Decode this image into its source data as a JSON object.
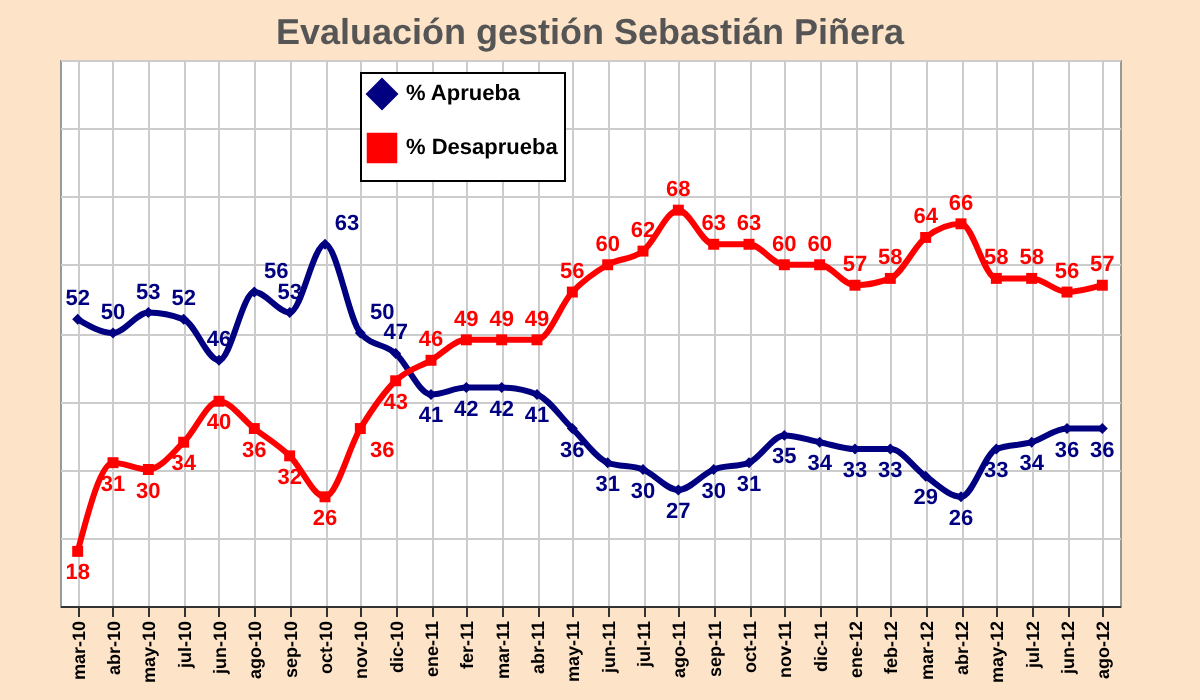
{
  "chart_data": {
    "type": "line",
    "title": "Evaluación gestión Sebastián Piñera",
    "categories": [
      "mar-10",
      "abr-10",
      "may-10",
      "jul-10",
      "jun-10",
      "ago-10",
      "sep-10",
      "oct-10",
      "nov-10",
      "dic-10",
      "ene-11",
      "fer-11",
      "mar-11",
      "abr-11",
      "may-11",
      "jun-11",
      "jul-11",
      "ago-11",
      "sep-11",
      "oct-11",
      "nov-11",
      "dic-11",
      "ene-12",
      "feb-12",
      "mar-12",
      "abr-12",
      "may-12",
      "jul-12",
      "jun-12",
      "ago-12"
    ],
    "series": [
      {
        "name": "% Aprueba",
        "color": "#000080",
        "marker": "diamond",
        "values": [
          52,
          50,
          53,
          52,
          46,
          56,
          53,
          63,
          50,
          47,
          41,
          42,
          42,
          41,
          36,
          31,
          30,
          27,
          30,
          31,
          35,
          34,
          33,
          33,
          29,
          26,
          33,
          34,
          36,
          36
        ]
      },
      {
        "name": "% Desaprueba",
        "color": "#ff0000",
        "marker": "square",
        "values": [
          18,
          31,
          30,
          34,
          40,
          36,
          32,
          26,
          36,
          43,
          46,
          49,
          49,
          49,
          56,
          60,
          62,
          68,
          63,
          63,
          60,
          60,
          57,
          58,
          64,
          66,
          58,
          58,
          56,
          57
        ]
      }
    ],
    "tick_labels": "x",
    "grid": true,
    "legend": "top",
    "data_labels": true,
    "line_style": "solid"
  }
}
